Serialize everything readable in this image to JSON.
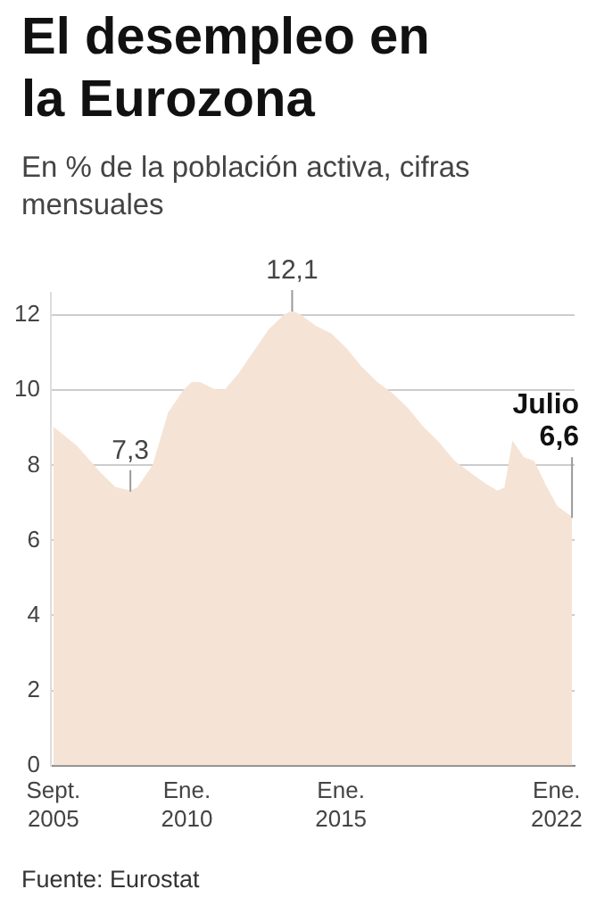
{
  "chart_data": {
    "type": "area",
    "title": "El desempleo en la Eurozona",
    "subtitle": "En % de la población activa, cifras mensuales",
    "x": [
      "2005-09",
      "2006-06",
      "2007-03",
      "2007-09",
      "2008-03",
      "2008-06",
      "2008-12",
      "2009-06",
      "2009-12",
      "2010-03",
      "2010-06",
      "2010-12",
      "2011-04",
      "2011-09",
      "2012-03",
      "2012-09",
      "2013-03",
      "2013-06",
      "2013-09",
      "2014-03",
      "2014-09",
      "2015-03",
      "2015-09",
      "2016-03",
      "2016-09",
      "2017-03",
      "2017-09",
      "2018-03",
      "2018-09",
      "2019-03",
      "2019-09",
      "2020-02",
      "2020-05",
      "2020-08",
      "2020-12",
      "2021-04",
      "2021-09",
      "2022-01",
      "2022-07"
    ],
    "values": [
      9.0,
      8.5,
      7.8,
      7.4,
      7.3,
      7.4,
      8.0,
      9.4,
      10.0,
      10.2,
      10.2,
      10.0,
      10.0,
      10.4,
      11.0,
      11.6,
      12.0,
      12.1,
      12.0,
      11.7,
      11.5,
      11.1,
      10.6,
      10.2,
      9.9,
      9.5,
      9.0,
      8.6,
      8.1,
      7.8,
      7.5,
      7.3,
      7.4,
      8.6,
      8.2,
      8.1,
      7.4,
      6.9,
      6.6
    ],
    "color": "#f5e4d5",
    "xlim": [
      "2005-08",
      "2022-08"
    ],
    "xticks": [
      {
        "value": "2005-09",
        "label": "Sept.\n2005"
      },
      {
        "value": "2010-01",
        "label": "Ene.\n2010"
      },
      {
        "value": "2015-01",
        "label": "Ene.\n2015"
      },
      {
        "value": "2022-01",
        "label": "Ene.\n2022"
      }
    ],
    "ylim": [
      0,
      12.6
    ],
    "yticks": [
      0,
      2,
      4,
      6,
      8,
      10,
      12
    ],
    "grid": "y",
    "annotations": [
      {
        "text": "7,3",
        "x": "2008-03",
        "y": 7.3
      },
      {
        "text": "12,1",
        "x": "2013-06",
        "y": 12.1
      },
      {
        "text": "Julio\n6,6",
        "x": "2022-07",
        "y": 6.6
      },
      "Fuente: Eurostat"
    ]
  }
}
